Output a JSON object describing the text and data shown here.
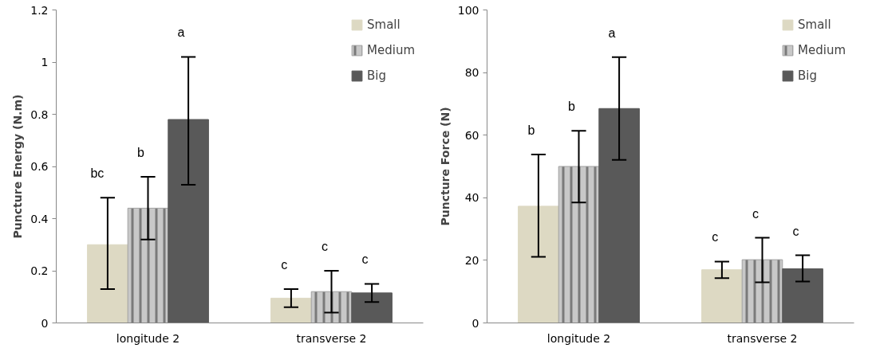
{
  "chart_data": [
    {
      "type": "bar",
      "ylabel": "Puncture Energy (N.m)",
      "categories": [
        "longitude 2",
        "transverse 2"
      ],
      "series": [
        {
          "name": "Small",
          "color": "#ddd9c3",
          "values": [
            0.3,
            0.095
          ],
          "errors": [
            [
              0.13,
              0.48
            ],
            [
              0.06,
              0.13
            ]
          ]
        },
        {
          "name": "Medium",
          "color": "#c8c8c8",
          "values": [
            0.44,
            0.12
          ],
          "errors": [
            [
              0.32,
              0.56
            ],
            [
              0.04,
              0.2
            ]
          ]
        },
        {
          "name": "Big",
          "color": "#595959",
          "values": [
            0.78,
            0.115
          ],
          "errors": [
            [
              0.53,
              1.02
            ],
            [
              0.08,
              0.15
            ]
          ]
        }
      ],
      "annotations": [
        "bc",
        "b",
        "a",
        "c",
        "c",
        "c"
      ],
      "ylim": [
        0,
        1.2
      ],
      "yticks": [
        0,
        0.2,
        0.4,
        0.6,
        0.8,
        1,
        1.2
      ],
      "grid": false,
      "legend": "top right"
    },
    {
      "type": "bar",
      "ylabel": "Puncture Force (N)",
      "categories": [
        "longitude 2",
        "transverse 2"
      ],
      "series": [
        {
          "name": "Small",
          "color": "#ddd9c3",
          "values": [
            37.3,
            17.0
          ],
          "errors": [
            [
              21.1,
              53.8
            ],
            [
              14.3,
              19.6
            ]
          ]
        },
        {
          "name": "Medium",
          "color": "#c8c8c8",
          "values": [
            50.0,
            20.2
          ],
          "errors": [
            [
              38.5,
              61.4
            ],
            [
              13.0,
              27.2
            ]
          ]
        },
        {
          "name": "Big",
          "color": "#595959",
          "values": [
            68.5,
            17.3
          ],
          "errors": [
            [
              52.1,
              84.9
            ],
            [
              13.2,
              21.6
            ]
          ]
        }
      ],
      "annotations": [
        "b",
        "b",
        "a",
        "c",
        "c",
        "c"
      ],
      "ylim": [
        0,
        100
      ],
      "yticks": [
        0,
        20,
        40,
        60,
        80,
        100
      ],
      "grid": false,
      "legend": "top right"
    }
  ]
}
